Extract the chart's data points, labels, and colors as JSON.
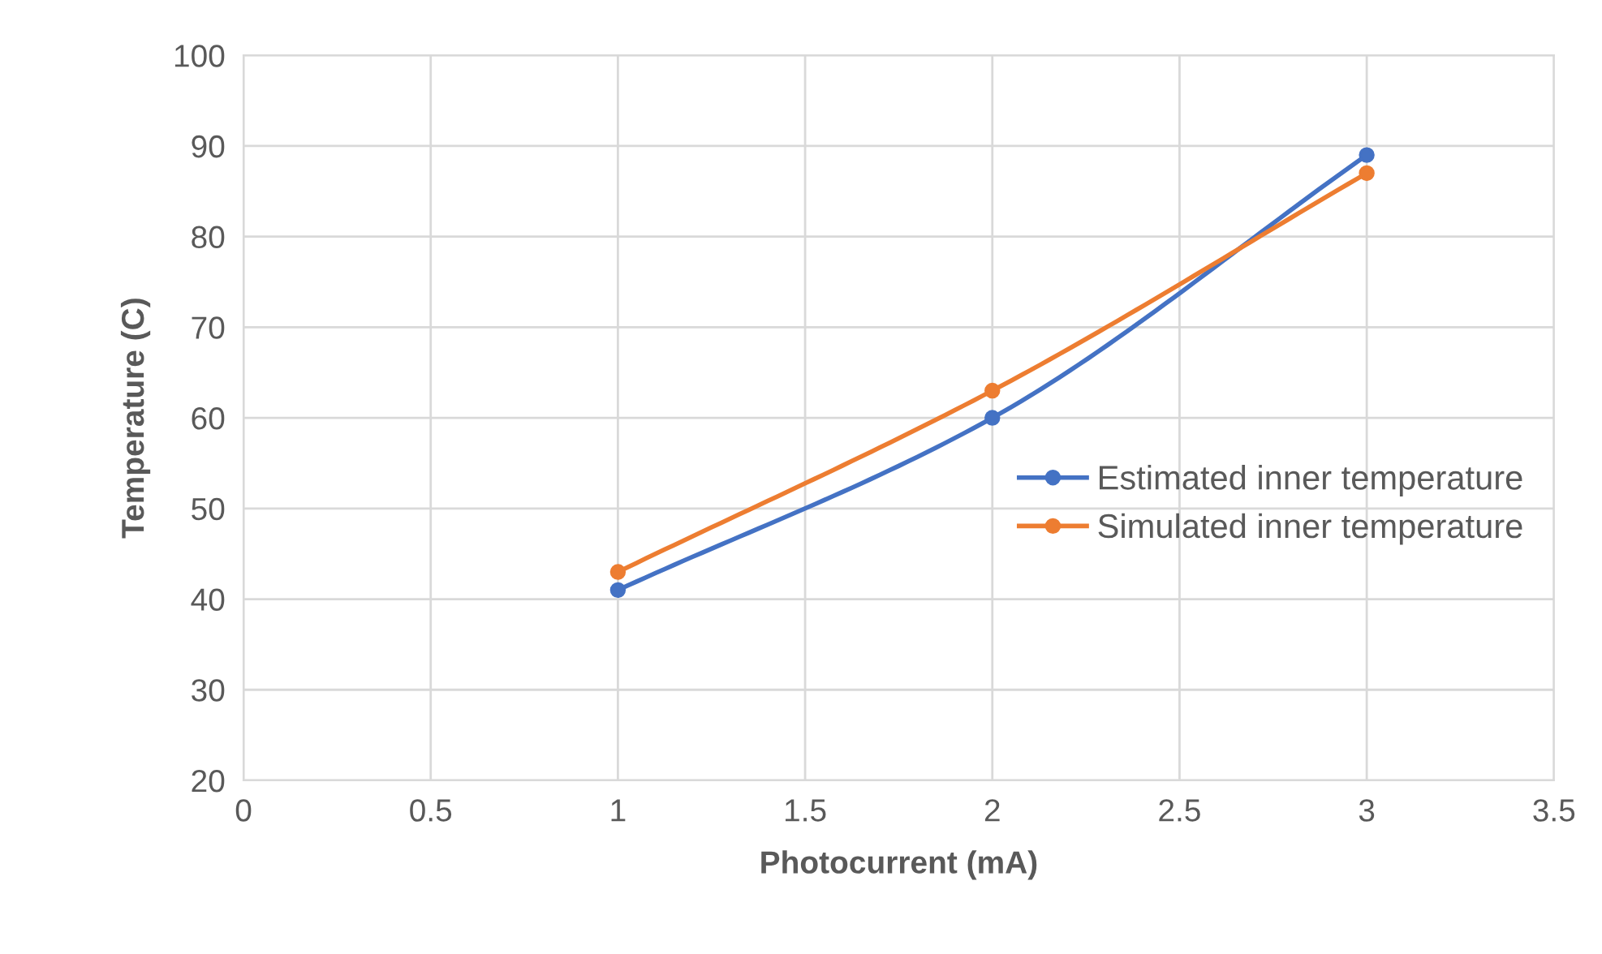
{
  "chart_data": {
    "type": "line",
    "xlabel": "Photocurrent (mA)",
    "ylabel": "Temperature (C)",
    "xlim": [
      0,
      3.5
    ],
    "xticks": [
      0,
      0.5,
      1,
      1.5,
      2,
      2.5,
      3,
      3.5
    ],
    "ylim": [
      20,
      100
    ],
    "yticks": [
      20,
      30,
      40,
      50,
      60,
      70,
      80,
      90,
      100
    ],
    "grid": true,
    "legend": "right",
    "marker": "circle",
    "line_style": "solid",
    "series": [
      {
        "name": "Estimated inner temperature",
        "color": "#4472c4",
        "x": [
          1,
          2,
          3
        ],
        "values": [
          41,
          60,
          89
        ]
      },
      {
        "name": "Simulated inner temperature",
        "color": "#ed7d31",
        "x": [
          1,
          2,
          3
        ],
        "values": [
          43,
          63,
          87
        ]
      }
    ]
  }
}
